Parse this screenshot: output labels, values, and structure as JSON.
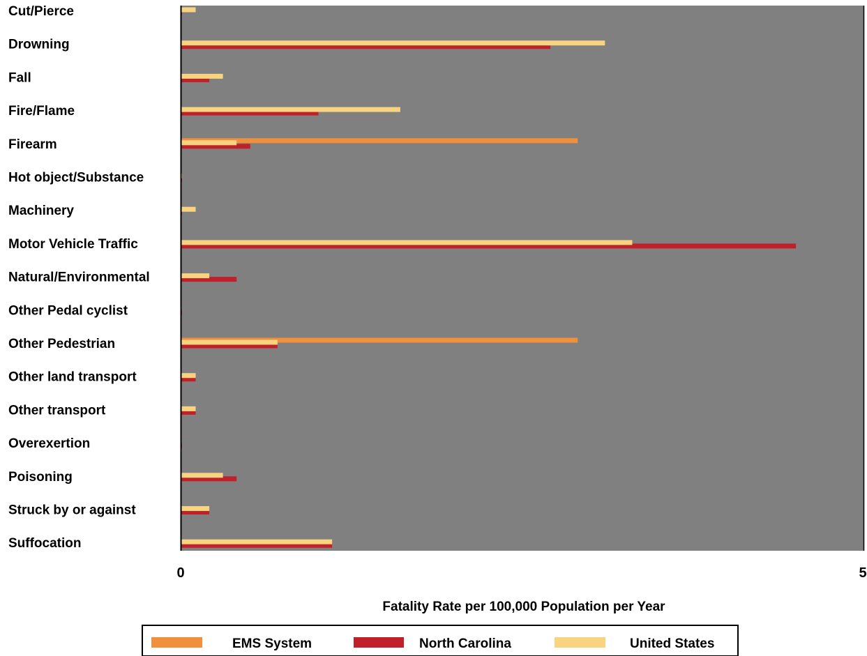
{
  "chart_data": {
    "type": "bar",
    "orientation": "horizontal",
    "categories": [
      "Cut/Pierce",
      "Drowning",
      "Fall",
      "Fire/Flame",
      "Firearm",
      "Hot object/Substance",
      "Machinery",
      "Motor Vehicle Traffic",
      "Natural/Environmental",
      "Other Pedal cyclist",
      "Other Pedestrian",
      "Other land transport",
      "Other transport",
      "Overexertion",
      "Poisoning",
      "Struck by or against",
      "Suffocation"
    ],
    "series": [
      {
        "name": "EMS System",
        "color": "#f0903c",
        "values": [
          0,
          0,
          0,
          0,
          2.91,
          0,
          0,
          0,
          0,
          0,
          2.91,
          0,
          0,
          0,
          0,
          0,
          0
        ]
      },
      {
        "name": "North Carolina",
        "color": "#c0202a",
        "values": [
          0.01,
          2.71,
          0.21,
          1.01,
          0.51,
          0.01,
          0.01,
          4.51,
          0.41,
          0.01,
          0.71,
          0.11,
          0.11,
          0.01,
          0.41,
          0.21,
          1.11
        ]
      },
      {
        "name": "United States",
        "color": "#f8d480",
        "values": [
          0.11,
          3.11,
          0.31,
          1.61,
          0.41,
          0.01,
          0.11,
          3.31,
          0.21,
          0,
          0.71,
          0.11,
          0.11,
          0,
          0.31,
          0.21,
          1.11
        ]
      }
    ],
    "xlabel": "Fatality Rate per 100,000 Population per Year",
    "xlim": [
      0,
      5
    ],
    "xticks": [
      "0",
      "5"
    ],
    "plot_background": "#808080",
    "grid": false,
    "legend_position": "bottom"
  }
}
